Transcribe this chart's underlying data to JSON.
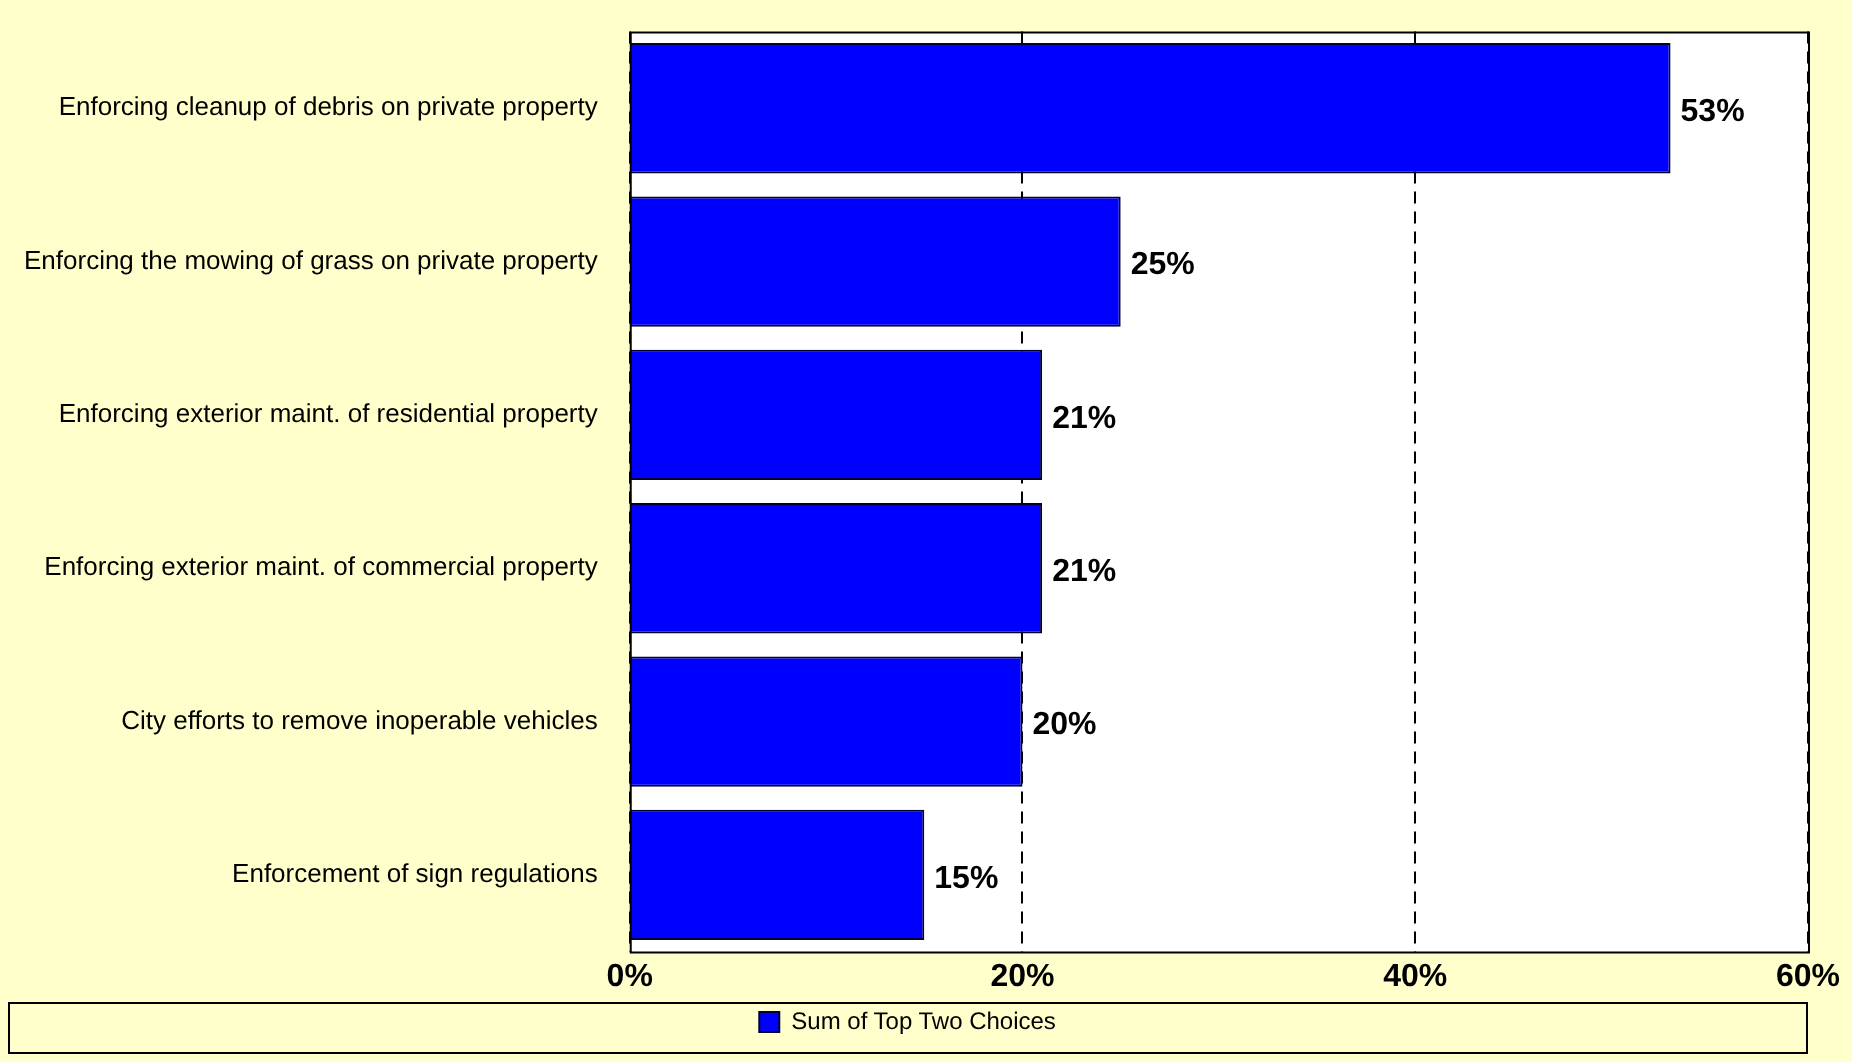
{
  "chart_data": {
    "type": "bar",
    "orientation": "horizontal",
    "categories": [
      "Enforcing cleanup of debris on private property",
      "Enforcing the mowing of grass on private property",
      "Enforcing exterior maint. of residential property",
      "Enforcing exterior maint. of commercial property",
      "City efforts to remove inoperable vehicles",
      "Enforcement of sign regulations"
    ],
    "series": [
      {
        "name": "Sum of Top Two Choices",
        "color": "#0000ff",
        "values": [
          53,
          25,
          21,
          21,
          20,
          15
        ]
      }
    ],
    "xlim": [
      0,
      60
    ],
    "xticks": [
      {
        "value": 0,
        "label": "0%"
      },
      {
        "value": 20,
        "label": "20%"
      },
      {
        "value": 40,
        "label": "40%"
      },
      {
        "value": 60,
        "label": "60%"
      }
    ],
    "value_labels": [
      "53%",
      "25%",
      "21%",
      "21%",
      "20%",
      "15%"
    ],
    "grid": "x",
    "legend": "bottom"
  }
}
